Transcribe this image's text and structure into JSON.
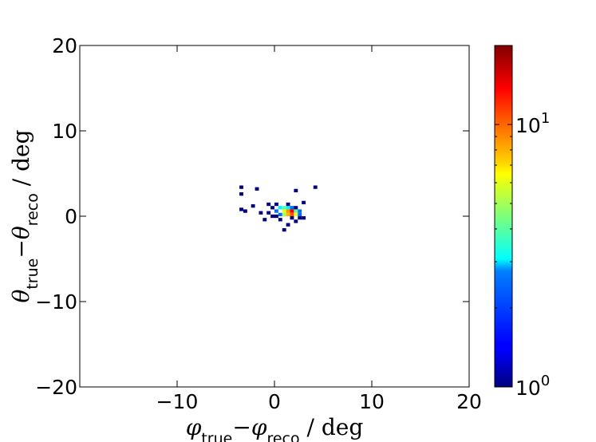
{
  "chart_data": {
    "type": "heatmap",
    "title": "",
    "xlabel": {
      "parts": [
        {
          "text": "φ",
          "style": "italic"
        },
        {
          "text": "true",
          "sub": true
        },
        {
          "text": "−"
        },
        {
          "text": "φ",
          "style": "italic"
        },
        {
          "text": "reco",
          "sub": true
        },
        {
          "text": " / deg"
        }
      ]
    },
    "ylabel": {
      "parts": [
        {
          "text": "θ",
          "style": "italic"
        },
        {
          "text": "true",
          "sub": true
        },
        {
          "text": "−"
        },
        {
          "text": "θ",
          "style": "italic"
        },
        {
          "text": "reco",
          "sub": true
        },
        {
          "text": " / deg"
        }
      ]
    },
    "xlim": [
      -20,
      20
    ],
    "ylim": [
      -20,
      20
    ],
    "x_ticks": [
      -10,
      0,
      10,
      20
    ],
    "x_tick_labels": [
      "−10",
      "0",
      "10",
      "20"
    ],
    "y_ticks": [
      -20,
      -10,
      0,
      10,
      20
    ],
    "y_tick_labels": [
      "−20",
      "−10",
      "0",
      "10",
      "20"
    ],
    "grid": false,
    "bin_width": 0.4,
    "bin_height": 0.4,
    "colorbar": {
      "scale": "log",
      "range": [
        1,
        20
      ],
      "colormap": "jet",
      "ticks": [
        {
          "value": 1,
          "base": "10",
          "exp": "0"
        },
        {
          "value": 10,
          "base": "10",
          "exp": "1"
        }
      ]
    },
    "bins": [
      [
        -3.6,
        3.2,
        1
      ],
      [
        -3.6,
        2.4,
        1
      ],
      [
        -3.6,
        0.6,
        1
      ],
      [
        -3.2,
        0.4,
        1
      ],
      [
        -2.4,
        1.0,
        1
      ],
      [
        -2.0,
        3.0,
        1
      ],
      [
        -1.6,
        0.2,
        1
      ],
      [
        -1.2,
        -0.6,
        1
      ],
      [
        -0.8,
        1.2,
        1
      ],
      [
        -0.4,
        0.8,
        1
      ],
      [
        -0.4,
        -0.2,
        1
      ],
      [
        0.0,
        1.2,
        1
      ],
      [
        0.0,
        0.4,
        2
      ],
      [
        0.0,
        -0.2,
        1
      ],
      [
        0.4,
        0.8,
        3
      ],
      [
        0.4,
        0.0,
        2
      ],
      [
        0.4,
        -0.6,
        1
      ],
      [
        0.8,
        0.8,
        4
      ],
      [
        0.8,
        0.4,
        6
      ],
      [
        0.8,
        0.0,
        5
      ],
      [
        1.2,
        0.8,
        3
      ],
      [
        1.2,
        0.4,
        9
      ],
      [
        1.2,
        0.0,
        8
      ],
      [
        1.6,
        0.8,
        2
      ],
      [
        1.6,
        0.4,
        14
      ],
      [
        1.6,
        0.0,
        11
      ],
      [
        1.6,
        -0.4,
        1
      ],
      [
        2.0,
        0.8,
        1
      ],
      [
        2.0,
        0.4,
        4
      ],
      [
        2.0,
        0.0,
        6
      ],
      [
        2.4,
        0.4,
        2
      ],
      [
        2.4,
        0.0,
        2
      ],
      [
        2.4,
        -0.4,
        1
      ],
      [
        2.8,
        -0.4,
        1
      ],
      [
        1.2,
        -1.2,
        1
      ],
      [
        0.8,
        -1.8,
        1
      ],
      [
        2.0,
        2.8,
        1
      ],
      [
        2.8,
        1.4,
        1
      ],
      [
        4.0,
        3.2,
        1
      ],
      [
        -0.8,
        0.2,
        1
      ],
      [
        1.2,
        1.2,
        1
      ],
      [
        2.0,
        -0.8,
        1
      ]
    ]
  }
}
